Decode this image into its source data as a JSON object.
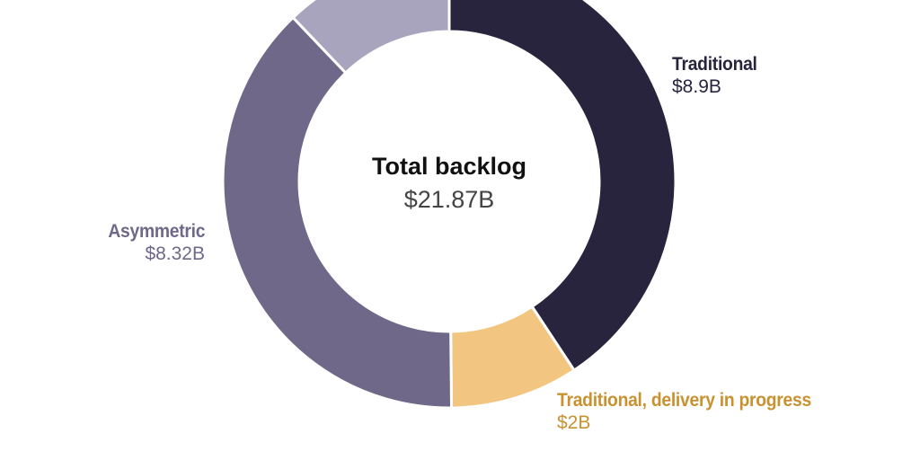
{
  "chart_data": {
    "type": "pie",
    "subtype": "donut",
    "title": "Total backlog",
    "center_label": "Total backlog",
    "center_value": "$21.87B",
    "total": 21.87,
    "unit": "$B",
    "slices": [
      {
        "name": "Traditional",
        "value": 8.9,
        "label": "$8.9B",
        "color": "#29243d",
        "label_color": "#29243d"
      },
      {
        "name": "Traditional, delivery in progress",
        "value": 2.0,
        "label": "$2B",
        "color": "#f2c681",
        "label_color": "#c99130"
      },
      {
        "name": "Asymmetric",
        "value": 8.32,
        "label": "$8.32B",
        "color": "#6f6888",
        "label_color": "#6f6888"
      },
      {
        "name": "",
        "value": 2.65,
        "label": "",
        "color": "#a8a4bd",
        "label_color": ""
      }
    ],
    "legend": "none (direct labels)"
  },
  "labels": {
    "traditional": {
      "name": "Traditional",
      "value": "$8.9B"
    },
    "delivery": {
      "name": "Traditional, delivery in progress",
      "value": "$2B"
    },
    "asymmetric": {
      "name": "Asymmetric",
      "value": "$8.32B"
    }
  },
  "center": {
    "title": "Total backlog",
    "value": "$21.87B"
  }
}
